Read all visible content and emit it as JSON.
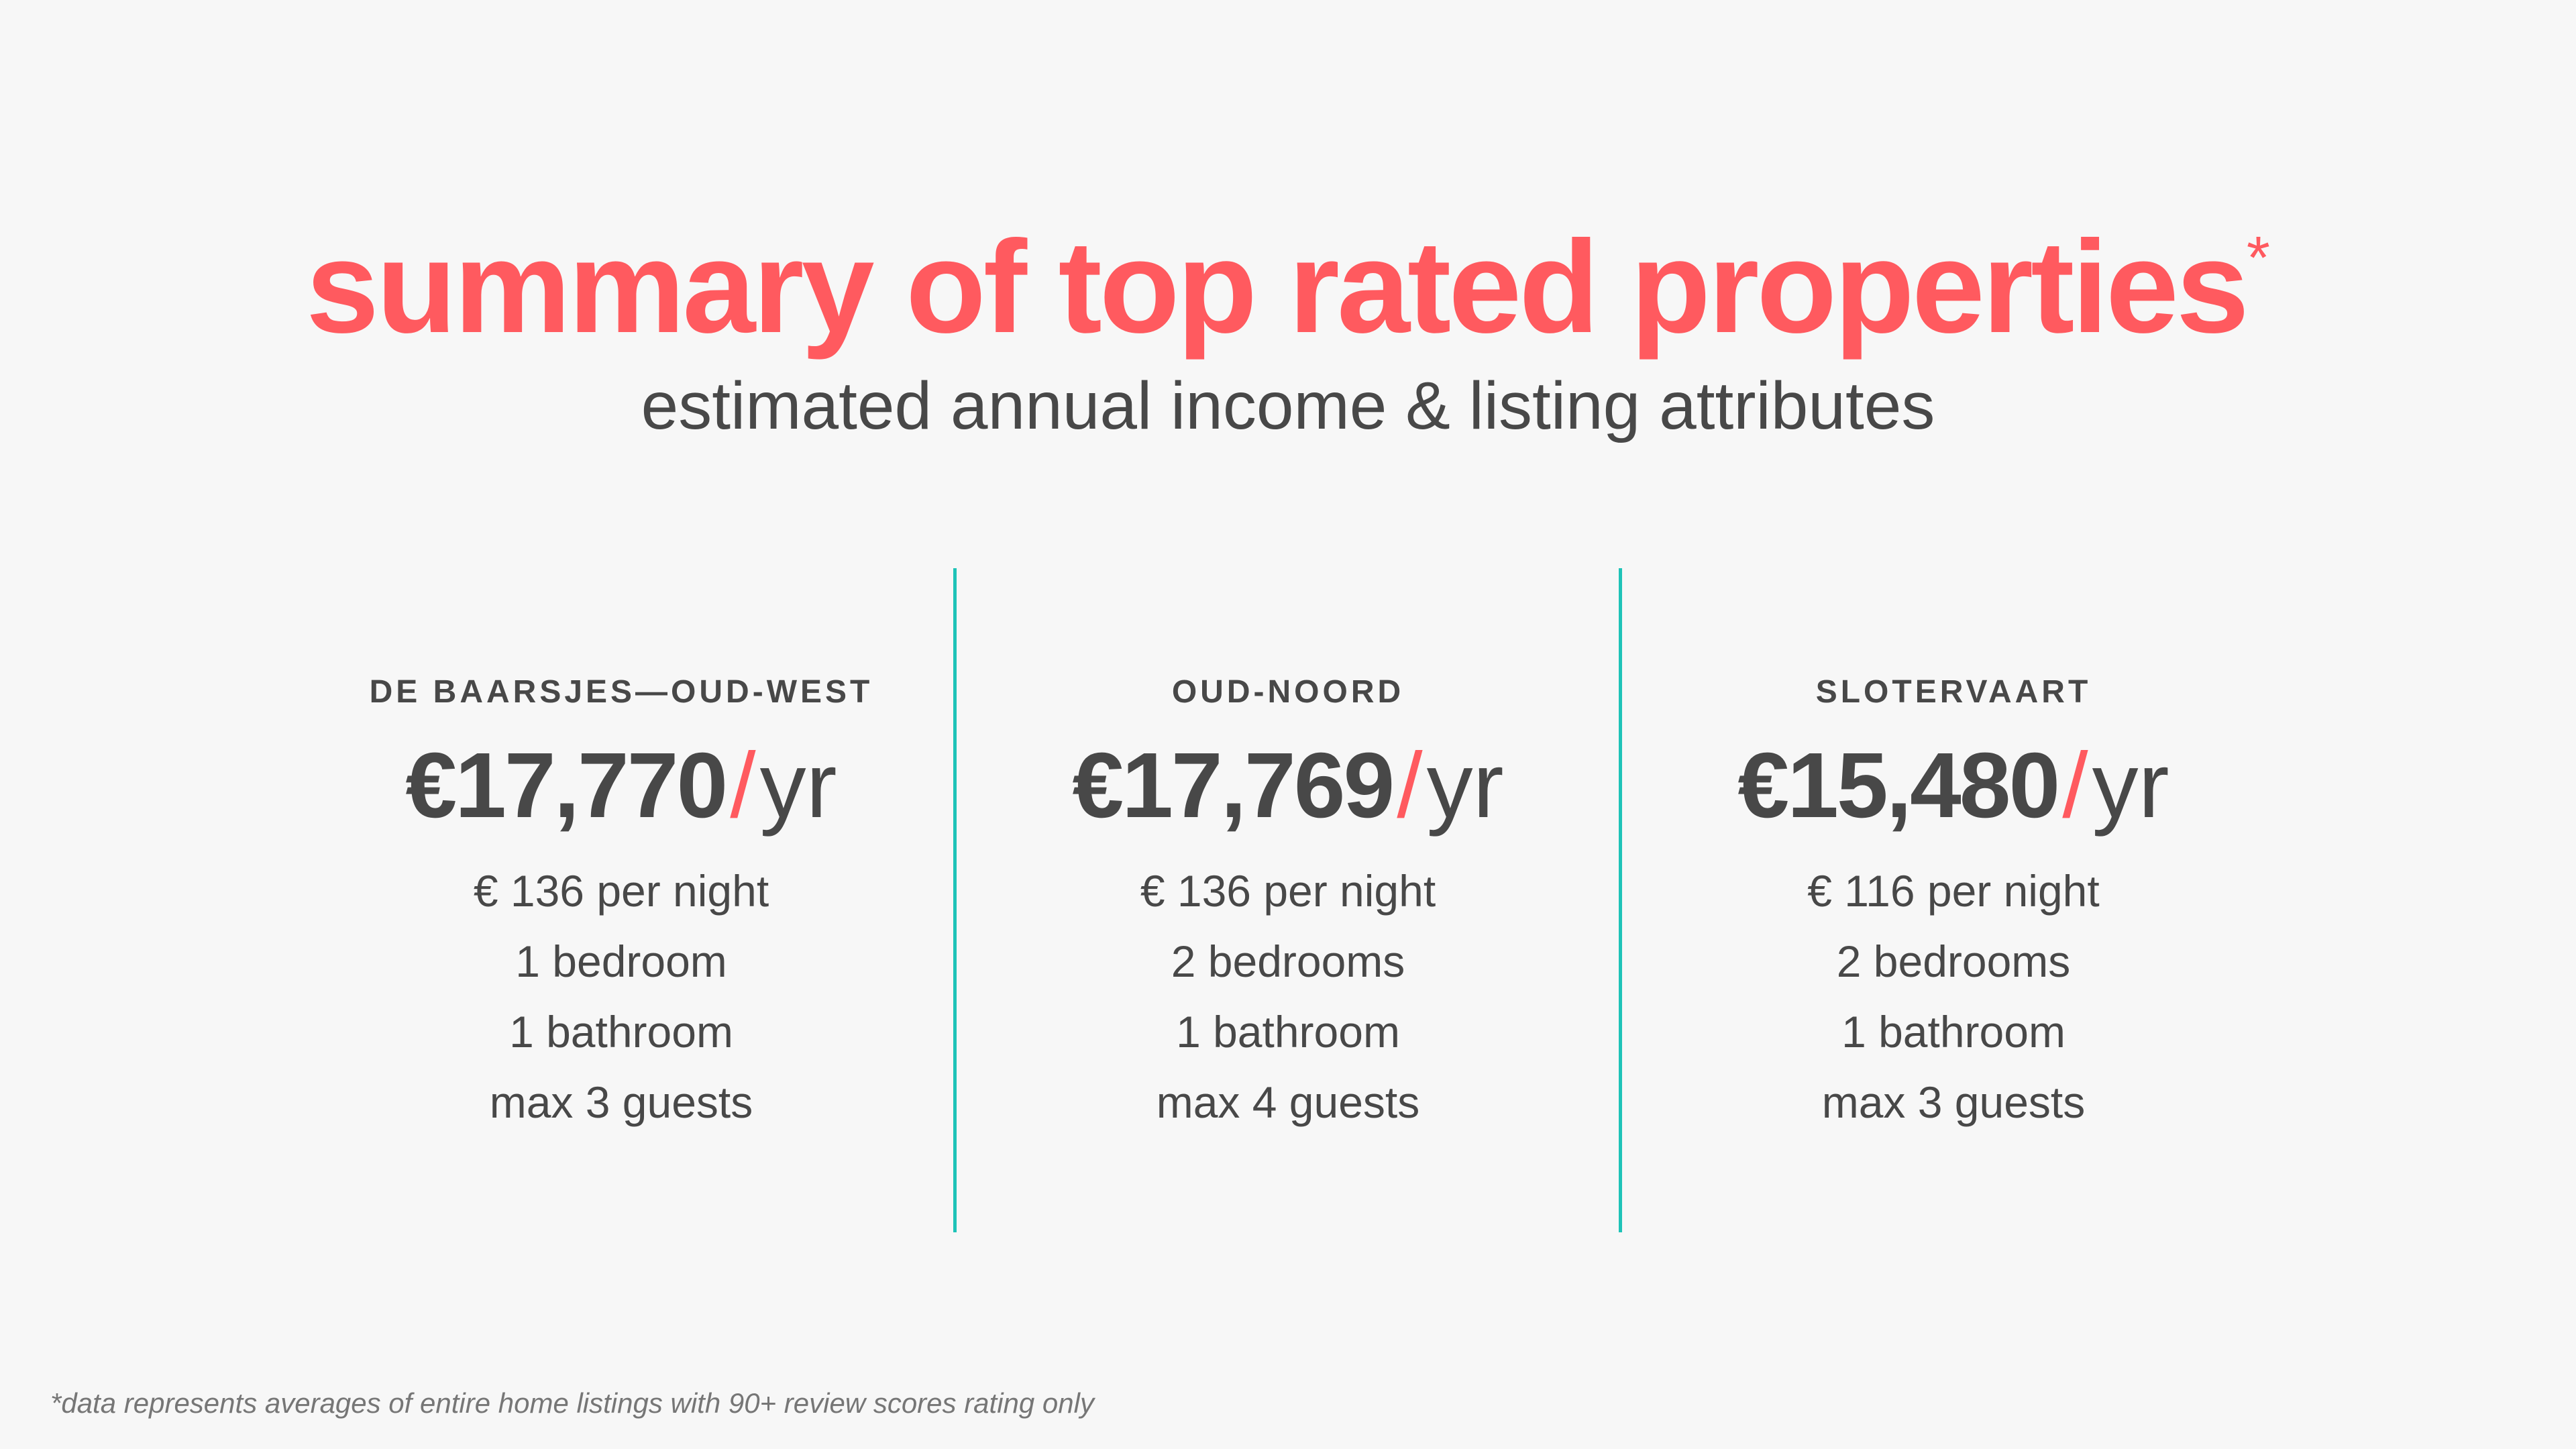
{
  "title": "summary of top rated properties",
  "title_asterisk": "*",
  "subtitle": "estimated annual income & listing attributes",
  "price_suffix": "yr",
  "slash": "/",
  "colors": {
    "accent": "#ff5a5f",
    "divider": "#1fc3b8",
    "text": "#484848"
  },
  "properties": [
    {
      "neighborhood": "DE BAARSJES—OUD-WEST",
      "annual": "€17,770",
      "per_night": "€ 136 per night",
      "bedrooms": "1 bedroom",
      "bathrooms": "1 bathroom",
      "guests": "max 3 guests"
    },
    {
      "neighborhood": "OUD-NOORD",
      "annual": "€17,769",
      "per_night": "€ 136 per night",
      "bedrooms": "2 bedrooms",
      "bathrooms": "1 bathroom",
      "guests": "max 4 guests"
    },
    {
      "neighborhood": "SLOTERVAART",
      "annual": "€15,480",
      "per_night": "€ 116 per night",
      "bedrooms": "2 bedrooms",
      "bathrooms": "1 bathroom",
      "guests": "max 3 guests"
    }
  ],
  "footnote": "*data represents averages of entire home listings with 90+ review scores rating only"
}
